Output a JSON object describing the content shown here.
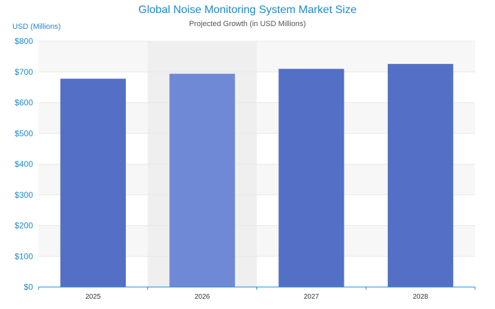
{
  "chart_data": {
    "type": "bar",
    "title": "Global Noise Monitoring System Market Size",
    "subtitle": "Projected Growth (in USD Millions)",
    "ylabel": "USD (Millions)",
    "xlabel": "",
    "categories": [
      "2025",
      "2026",
      "2027",
      "2028"
    ],
    "values": [
      678,
      694,
      710,
      726
    ],
    "ylim": [
      0,
      800
    ],
    "yticks": [
      0,
      100,
      200,
      300,
      400,
      500,
      600,
      700,
      800
    ],
    "ytick_labels": [
      "$0",
      "$100",
      "$200",
      "$300",
      "$400",
      "$500",
      "$600",
      "$700",
      "$800"
    ],
    "highlighted_category": "2026",
    "grid": true,
    "legend": "none"
  },
  "colors": {
    "bar": "#5470c6",
    "bar_highlight": "#7089d6",
    "highlight_band": "#efefef",
    "stripe": "#f7f7f7",
    "title": "#1a8ad0",
    "axis_text": "#1a8ad0",
    "axis_line": "#1a8ad0",
    "grid": "#e8e8e8"
  }
}
